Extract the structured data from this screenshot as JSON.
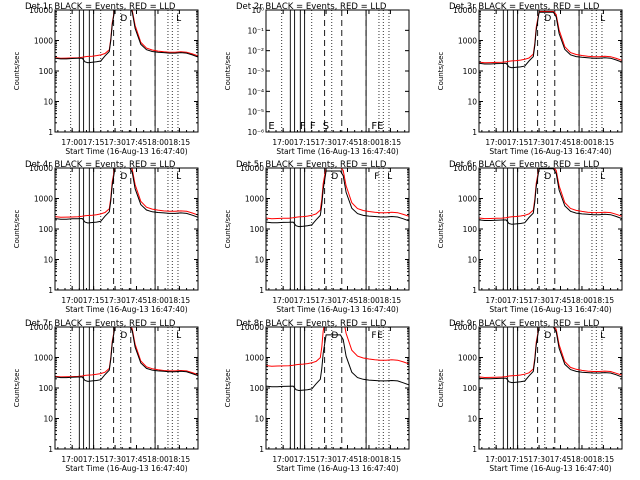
{
  "chart_data": {
    "type": "line",
    "grid": false,
    "colors": {
      "events": "#000000",
      "lld": "#ff0000",
      "axes": "#000000"
    },
    "shared": {
      "xlabel": "Start Time (16-Aug-13 16:47:40)",
      "ylabel": "Counts/sec",
      "xtick_labels": [
        "17:00",
        "17:15",
        "17:30",
        "17:45",
        "18:00",
        "18:15"
      ],
      "xtick_values_min": [
        0,
        15,
        30,
        45,
        60,
        75
      ],
      "xlim_min": [
        -12,
        88
      ],
      "yscale": "log",
      "ylim": [
        1,
        10000
      ],
      "ytick_labels": [
        "1",
        "10",
        "100",
        "1000",
        "10000"
      ],
      "ytick_values": [
        1,
        10,
        100,
        1000,
        10000
      ],
      "dotted_lines_min": [
        -1,
        20,
        34,
        67,
        70,
        74
      ],
      "dashed_lines_min": [
        29,
        41,
        58
      ],
      "solid_lines_min": [
        5,
        8,
        12,
        15,
        58
      ],
      "time_min": [
        -12,
        -8,
        -4,
        0,
        4,
        7,
        9,
        11,
        14,
        17,
        20,
        23,
        26,
        27,
        28,
        30,
        32,
        33,
        35,
        38,
        40,
        42,
        44,
        48,
        52,
        56,
        60,
        64,
        68,
        72,
        76,
        80,
        84,
        88
      ],
      "lld_base_cps": [
        220,
        210,
        212,
        215,
        218,
        225,
        235,
        240,
        245,
        255,
        270,
        300,
        400,
        900,
        3000,
        10000,
        10000,
        10000,
        10000,
        10000,
        10000,
        8000,
        2500,
        700,
        450,
        390,
        360,
        340,
        330,
        330,
        340,
        330,
        290,
        250
      ],
      "events_base_cps": [
        210,
        200,
        200,
        205,
        208,
        210,
        160,
        150,
        155,
        160,
        170,
        250,
        350,
        800,
        2500,
        10000,
        10000,
        10000,
        10000,
        10000,
        10000,
        7000,
        2000,
        600,
        400,
        350,
        330,
        320,
        310,
        310,
        320,
        310,
        270,
        230
      ]
    },
    "panels": [
      {
        "title": "Det 1r  BLACK = Events, RED = LLD",
        "scale": 1.25,
        "lld_scale": 1.0,
        "markers": [
          {
            "text": "D",
            "min": 33
          },
          {
            "text": "L",
            "min": 72
          }
        ]
      },
      {
        "title": "Det 2r  BLACK = Events, RED = LLD",
        "ylim": [
          1,
          1e-06
        ],
        "ytick_labels": [
          "10⁻⁶",
          "10⁻⁵",
          "10⁻⁴",
          "10⁻³",
          "10⁻²",
          "10⁻¹",
          "10⁰"
        ],
        "empty": true,
        "markers": [
          {
            "text": "E",
            "min": -11
          },
          {
            "text": "F",
            "min": 11
          },
          {
            "text": "F",
            "min": 18
          },
          {
            "text": "S",
            "min": 27
          },
          {
            "text": "F",
            "min": 61
          },
          {
            "text": "E",
            "min": 65
          }
        ]
      },
      {
        "title": "Det 3r  BLACK = Events, RED = LLD",
        "scale": 0.85,
        "lld_scale": 1.05,
        "markers": [
          {
            "text": "D",
            "min": 33
          },
          {
            "text": "L",
            "min": 72
          }
        ]
      },
      {
        "title": "Det 4r  BLACK = Events, RED = LLD",
        "scale": 1.05,
        "lld_scale": 1.1,
        "markers": [
          {
            "text": "D",
            "min": 33
          },
          {
            "text": "L",
            "min": 72
          }
        ]
      },
      {
        "title": "Det 5r  BLACK = Events, RED = LLD",
        "scale": 0.8,
        "lld_scale": 1.3,
        "markers": [
          {
            "text": "D",
            "min": 33
          },
          {
            "text": "F",
            "min": 63
          },
          {
            "text": "L",
            "min": 72
          }
        ]
      },
      {
        "title": "Det 6r  BLACK = Events, RED = LLD",
        "scale": 0.95,
        "lld_scale": 1.1,
        "markers": [
          {
            "text": "D",
            "min": 33
          },
          {
            "text": "L",
            "min": 72
          }
        ]
      },
      {
        "title": "Det 7r  BLACK = Events, RED = LLD",
        "scale": 1.1,
        "lld_scale": 1.0,
        "markers": [
          {
            "text": "D",
            "min": 33
          },
          {
            "text": "L",
            "min": 72
          }
        ]
      },
      {
        "title": "Det 8r  BLACK = Events, RED = LLD",
        "scale": 0.55,
        "lld_scale": 4.5,
        "markers": [
          {
            "text": "D",
            "min": 33
          },
          {
            "text": "F",
            "min": 61
          },
          {
            "text": "E",
            "min": 65
          }
        ]
      },
      {
        "title": "Det 9r  BLACK = Events, RED = LLD",
        "scale": 1.0,
        "lld_scale": 1.05,
        "markers": [
          {
            "text": "D",
            "min": 33
          },
          {
            "text": "L",
            "min": 72
          }
        ]
      }
    ]
  }
}
